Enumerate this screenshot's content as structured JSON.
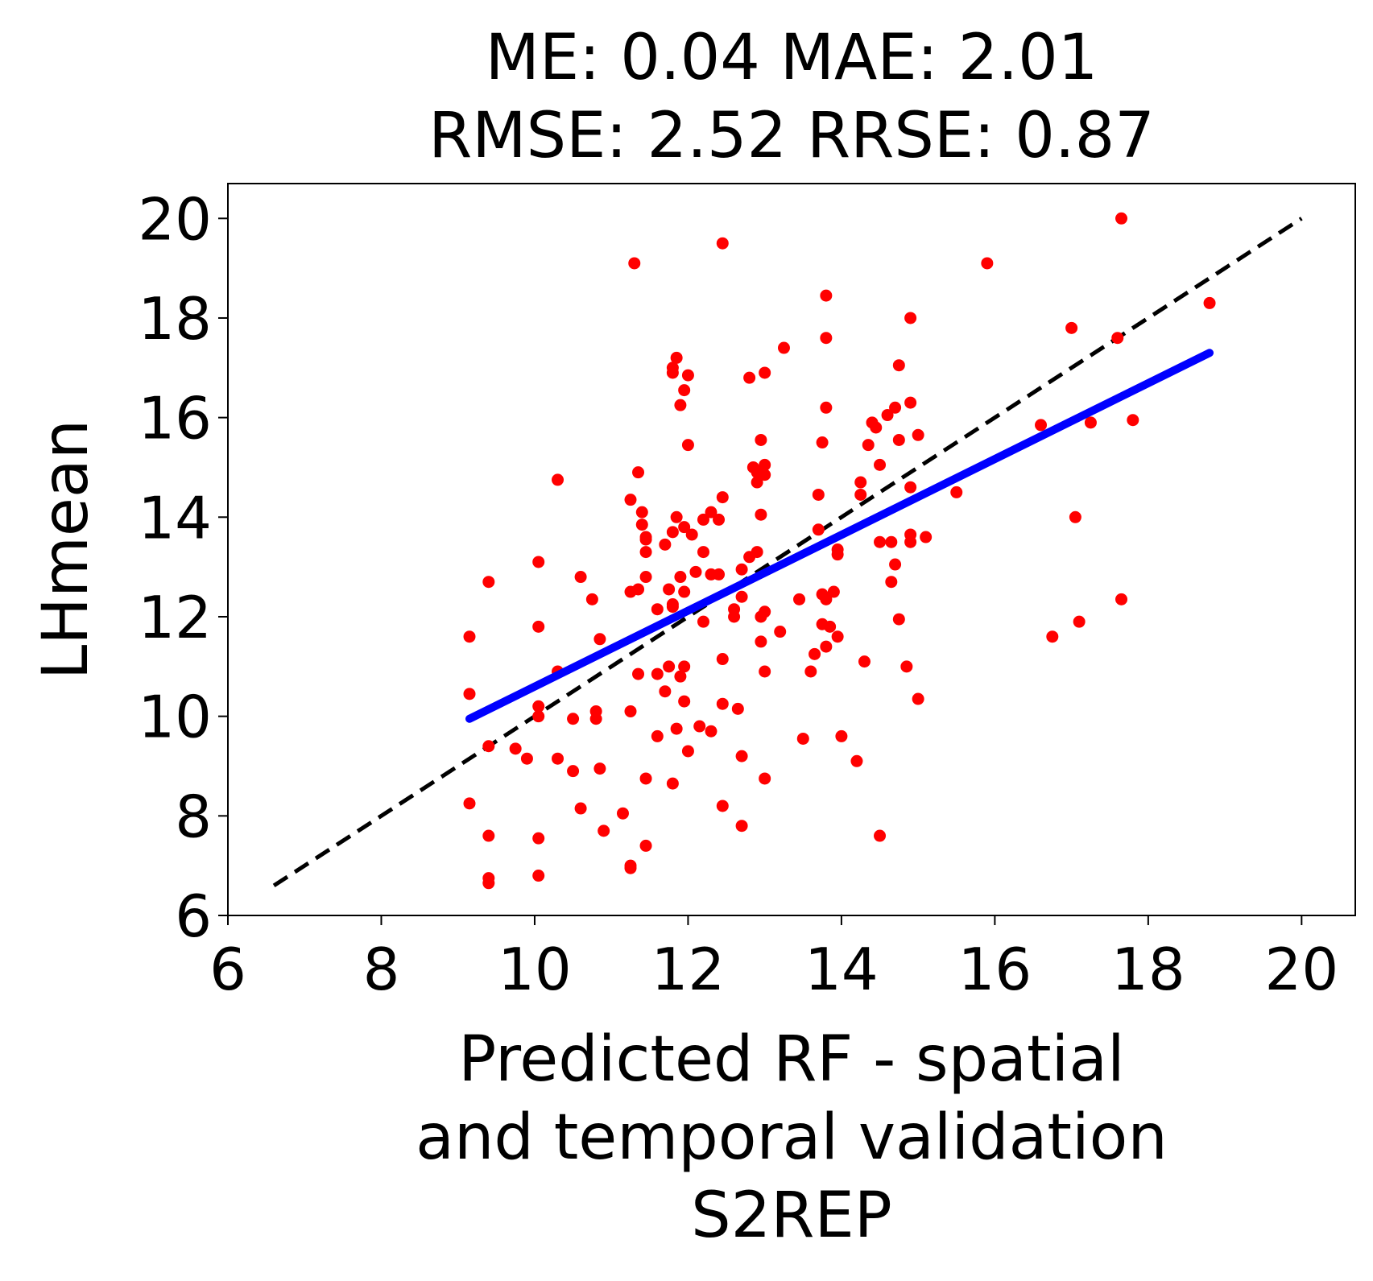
{
  "chart_data": {
    "type": "scatter",
    "title": [
      "ME: 0.04 MAE: 2.01",
      "RMSE: 2.52 RRSE: 0.87"
    ],
    "xlabel": [
      "Predicted RF - spatial",
      "and temporal validation",
      "S2REP"
    ],
    "ylabel": "LHmean",
    "xlim": [
      6,
      20.7
    ],
    "ylim": [
      6,
      20.7
    ],
    "xticks": [
      "6",
      "8",
      "10",
      "12",
      "14",
      "16",
      "18",
      "20"
    ],
    "yticks": [
      "6",
      "8",
      "10",
      "12",
      "14",
      "16",
      "18",
      "20"
    ],
    "grid": false,
    "colors": {
      "points": "#ff0000",
      "fit_line": "#0000ff",
      "identity_line": "#000000"
    },
    "identity_line": {
      "x": [
        6.6,
        20
      ],
      "y": [
        6.6,
        20
      ],
      "style": "dashed"
    },
    "fit_line": {
      "x": [
        9.15,
        18.8
      ],
      "y": [
        9.95,
        17.3
      ]
    },
    "points": [
      [
        9.15,
        11.6
      ],
      [
        9.15,
        10.45
      ],
      [
        9.15,
        8.25
      ],
      [
        9.4,
        12.7
      ],
      [
        9.4,
        9.4
      ],
      [
        9.4,
        7.6
      ],
      [
        9.4,
        6.75
      ],
      [
        9.4,
        6.65
      ],
      [
        9.75,
        9.35
      ],
      [
        9.9,
        9.15
      ],
      [
        10.05,
        13.1
      ],
      [
        10.05,
        11.8
      ],
      [
        10.05,
        10.2
      ],
      [
        10.05,
        10.0
      ],
      [
        10.05,
        7.55
      ],
      [
        10.05,
        6.8
      ],
      [
        10.3,
        14.75
      ],
      [
        10.3,
        10.9
      ],
      [
        10.3,
        9.15
      ],
      [
        10.5,
        9.95
      ],
      [
        10.5,
        8.9
      ],
      [
        10.6,
        12.8
      ],
      [
        10.6,
        8.15
      ],
      [
        10.75,
        12.35
      ],
      [
        10.8,
        10.1
      ],
      [
        10.8,
        9.95
      ],
      [
        10.85,
        11.55
      ],
      [
        10.85,
        8.95
      ],
      [
        10.9,
        7.7
      ],
      [
        11.15,
        8.05
      ],
      [
        11.25,
        14.35
      ],
      [
        11.25,
        12.5
      ],
      [
        11.25,
        10.1
      ],
      [
        11.25,
        7.0
      ],
      [
        11.25,
        6.95
      ],
      [
        11.3,
        19.1
      ],
      [
        11.35,
        12.55
      ],
      [
        11.35,
        14.9
      ],
      [
        11.35,
        10.85
      ],
      [
        11.4,
        14.1
      ],
      [
        11.4,
        13.85
      ],
      [
        11.45,
        13.6
      ],
      [
        11.45,
        13.55
      ],
      [
        11.45,
        13.3
      ],
      [
        11.45,
        12.8
      ],
      [
        11.45,
        8.75
      ],
      [
        11.45,
        7.4
      ],
      [
        11.6,
        12.15
      ],
      [
        11.6,
        10.85
      ],
      [
        11.6,
        9.6
      ],
      [
        11.7,
        13.45
      ],
      [
        11.7,
        10.5
      ],
      [
        11.75,
        12.55
      ],
      [
        11.75,
        11.0
      ],
      [
        11.8,
        17.0
      ],
      [
        11.8,
        16.9
      ],
      [
        11.8,
        13.7
      ],
      [
        11.8,
        12.25
      ],
      [
        11.8,
        12.2
      ],
      [
        11.8,
        8.65
      ],
      [
        11.85,
        17.2
      ],
      [
        11.85,
        14.0
      ],
      [
        11.85,
        9.75
      ],
      [
        11.9,
        16.25
      ],
      [
        11.9,
        12.8
      ],
      [
        11.9,
        10.8
      ],
      [
        11.95,
        16.55
      ],
      [
        11.95,
        13.8
      ],
      [
        11.95,
        12.5
      ],
      [
        11.95,
        11.0
      ],
      [
        11.95,
        10.3
      ],
      [
        12.0,
        16.85
      ],
      [
        12.0,
        15.45
      ],
      [
        12.0,
        9.3
      ],
      [
        12.05,
        13.65
      ],
      [
        12.1,
        12.9
      ],
      [
        12.15,
        9.8
      ],
      [
        12.2,
        13.3
      ],
      [
        12.2,
        11.9
      ],
      [
        12.2,
        13.95
      ],
      [
        12.3,
        14.1
      ],
      [
        12.3,
        12.85
      ],
      [
        12.3,
        9.7
      ],
      [
        12.4,
        13.95
      ],
      [
        12.4,
        12.85
      ],
      [
        12.45,
        19.5
      ],
      [
        12.45,
        14.4
      ],
      [
        12.45,
        11.15
      ],
      [
        12.45,
        10.25
      ],
      [
        12.45,
        8.2
      ],
      [
        12.6,
        12.15
      ],
      [
        12.6,
        12.0
      ],
      [
        12.65,
        10.15
      ],
      [
        12.7,
        12.95
      ],
      [
        12.7,
        12.4
      ],
      [
        12.7,
        9.2
      ],
      [
        12.7,
        7.8
      ],
      [
        12.8,
        16.8
      ],
      [
        12.8,
        13.2
      ],
      [
        12.85,
        15.0
      ],
      [
        12.9,
        14.9
      ],
      [
        12.9,
        14.7
      ],
      [
        12.9,
        13.3
      ],
      [
        12.95,
        15.55
      ],
      [
        12.95,
        14.05
      ],
      [
        12.95,
        12.0
      ],
      [
        12.95,
        11.5
      ],
      [
        13.0,
        16.9
      ],
      [
        13.0,
        15.05
      ],
      [
        13.0,
        14.85
      ],
      [
        13.0,
        12.1
      ],
      [
        13.0,
        10.9
      ],
      [
        13.0,
        8.75
      ],
      [
        13.2,
        11.7
      ],
      [
        13.25,
        17.4
      ],
      [
        13.45,
        12.35
      ],
      [
        13.5,
        9.55
      ],
      [
        13.6,
        10.9
      ],
      [
        13.65,
        11.25
      ],
      [
        13.7,
        14.45
      ],
      [
        13.7,
        13.75
      ],
      [
        13.75,
        15.5
      ],
      [
        13.75,
        12.45
      ],
      [
        13.75,
        11.85
      ],
      [
        13.8,
        18.45
      ],
      [
        13.8,
        17.6
      ],
      [
        13.8,
        16.2
      ],
      [
        13.8,
        12.35
      ],
      [
        13.8,
        11.4
      ],
      [
        13.85,
        11.8
      ],
      [
        13.9,
        12.5
      ],
      [
        13.95,
        13.35
      ],
      [
        13.95,
        13.25
      ],
      [
        13.95,
        11.6
      ],
      [
        14.0,
        9.6
      ],
      [
        14.2,
        9.1
      ],
      [
        14.25,
        14.45
      ],
      [
        14.25,
        14.7
      ],
      [
        14.3,
        11.1
      ],
      [
        14.35,
        15.45
      ],
      [
        14.4,
        15.9
      ],
      [
        14.45,
        15.8
      ],
      [
        14.5,
        15.05
      ],
      [
        14.5,
        13.5
      ],
      [
        14.5,
        7.6
      ],
      [
        14.6,
        16.05
      ],
      [
        14.65,
        13.5
      ],
      [
        14.65,
        12.7
      ],
      [
        14.7,
        16.2
      ],
      [
        14.7,
        13.05
      ],
      [
        14.75,
        17.05
      ],
      [
        14.75,
        15.55
      ],
      [
        14.75,
        11.95
      ],
      [
        14.85,
        11.0
      ],
      [
        14.9,
        18.0
      ],
      [
        14.9,
        16.3
      ],
      [
        14.9,
        14.6
      ],
      [
        14.9,
        13.65
      ],
      [
        14.9,
        13.5
      ],
      [
        15.0,
        15.65
      ],
      [
        15.0,
        10.35
      ],
      [
        15.1,
        13.6
      ],
      [
        15.5,
        14.5
      ],
      [
        15.9,
        19.1
      ],
      [
        16.6,
        15.85
      ],
      [
        16.75,
        11.6
      ],
      [
        17.0,
        17.8
      ],
      [
        17.05,
        14.0
      ],
      [
        17.1,
        11.9
      ],
      [
        17.25,
        15.9
      ],
      [
        17.6,
        17.6
      ],
      [
        17.65,
        12.35
      ],
      [
        17.65,
        20.0
      ],
      [
        17.8,
        15.95
      ],
      [
        18.8,
        18.3
      ]
    ]
  }
}
